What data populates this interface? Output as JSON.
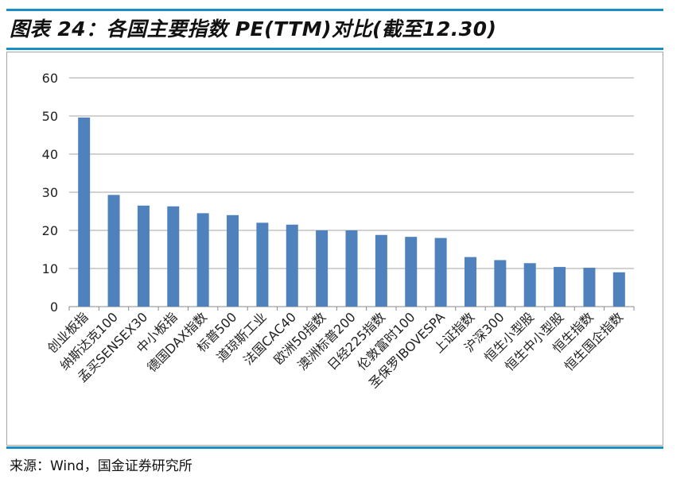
{
  "header": {
    "title": "图表 24：各国主要指数 PE(TTM)对比(截至12.30)"
  },
  "footer": {
    "source": "来源：Wind，国金证券研究所"
  },
  "colors": {
    "bar": "#4f81bd",
    "accent_rule": "#1a8fc7",
    "grid": "#a6a6a6"
  },
  "chart_data": {
    "type": "bar",
    "title": "",
    "xlabel": "",
    "ylabel": "",
    "ylim": [
      0,
      60
    ],
    "yticks": [
      0,
      10,
      20,
      30,
      40,
      50,
      60
    ],
    "grid": true,
    "legend": "none",
    "categories": [
      "创业板指",
      "纳斯达克100",
      "孟买SENSEX30",
      "中小板指",
      "德国DAX指数",
      "标普500",
      "道琼斯工业",
      "法国CAC40",
      "欧洲50指数",
      "澳洲标普200",
      "日经225指数",
      "伦敦富时100",
      "圣保罗IBOVESPA",
      "上证指数",
      "沪深300",
      "恒生小型股",
      "恒生中小型股",
      "恒生指数",
      "恒生国企指数"
    ],
    "values": [
      49.6,
      29.3,
      26.5,
      26.3,
      24.5,
      24.0,
      22.0,
      21.5,
      20.0,
      20.0,
      18.8,
      18.3,
      18.0,
      13.0,
      12.2,
      11.4,
      10.4,
      10.2,
      9.0
    ]
  }
}
